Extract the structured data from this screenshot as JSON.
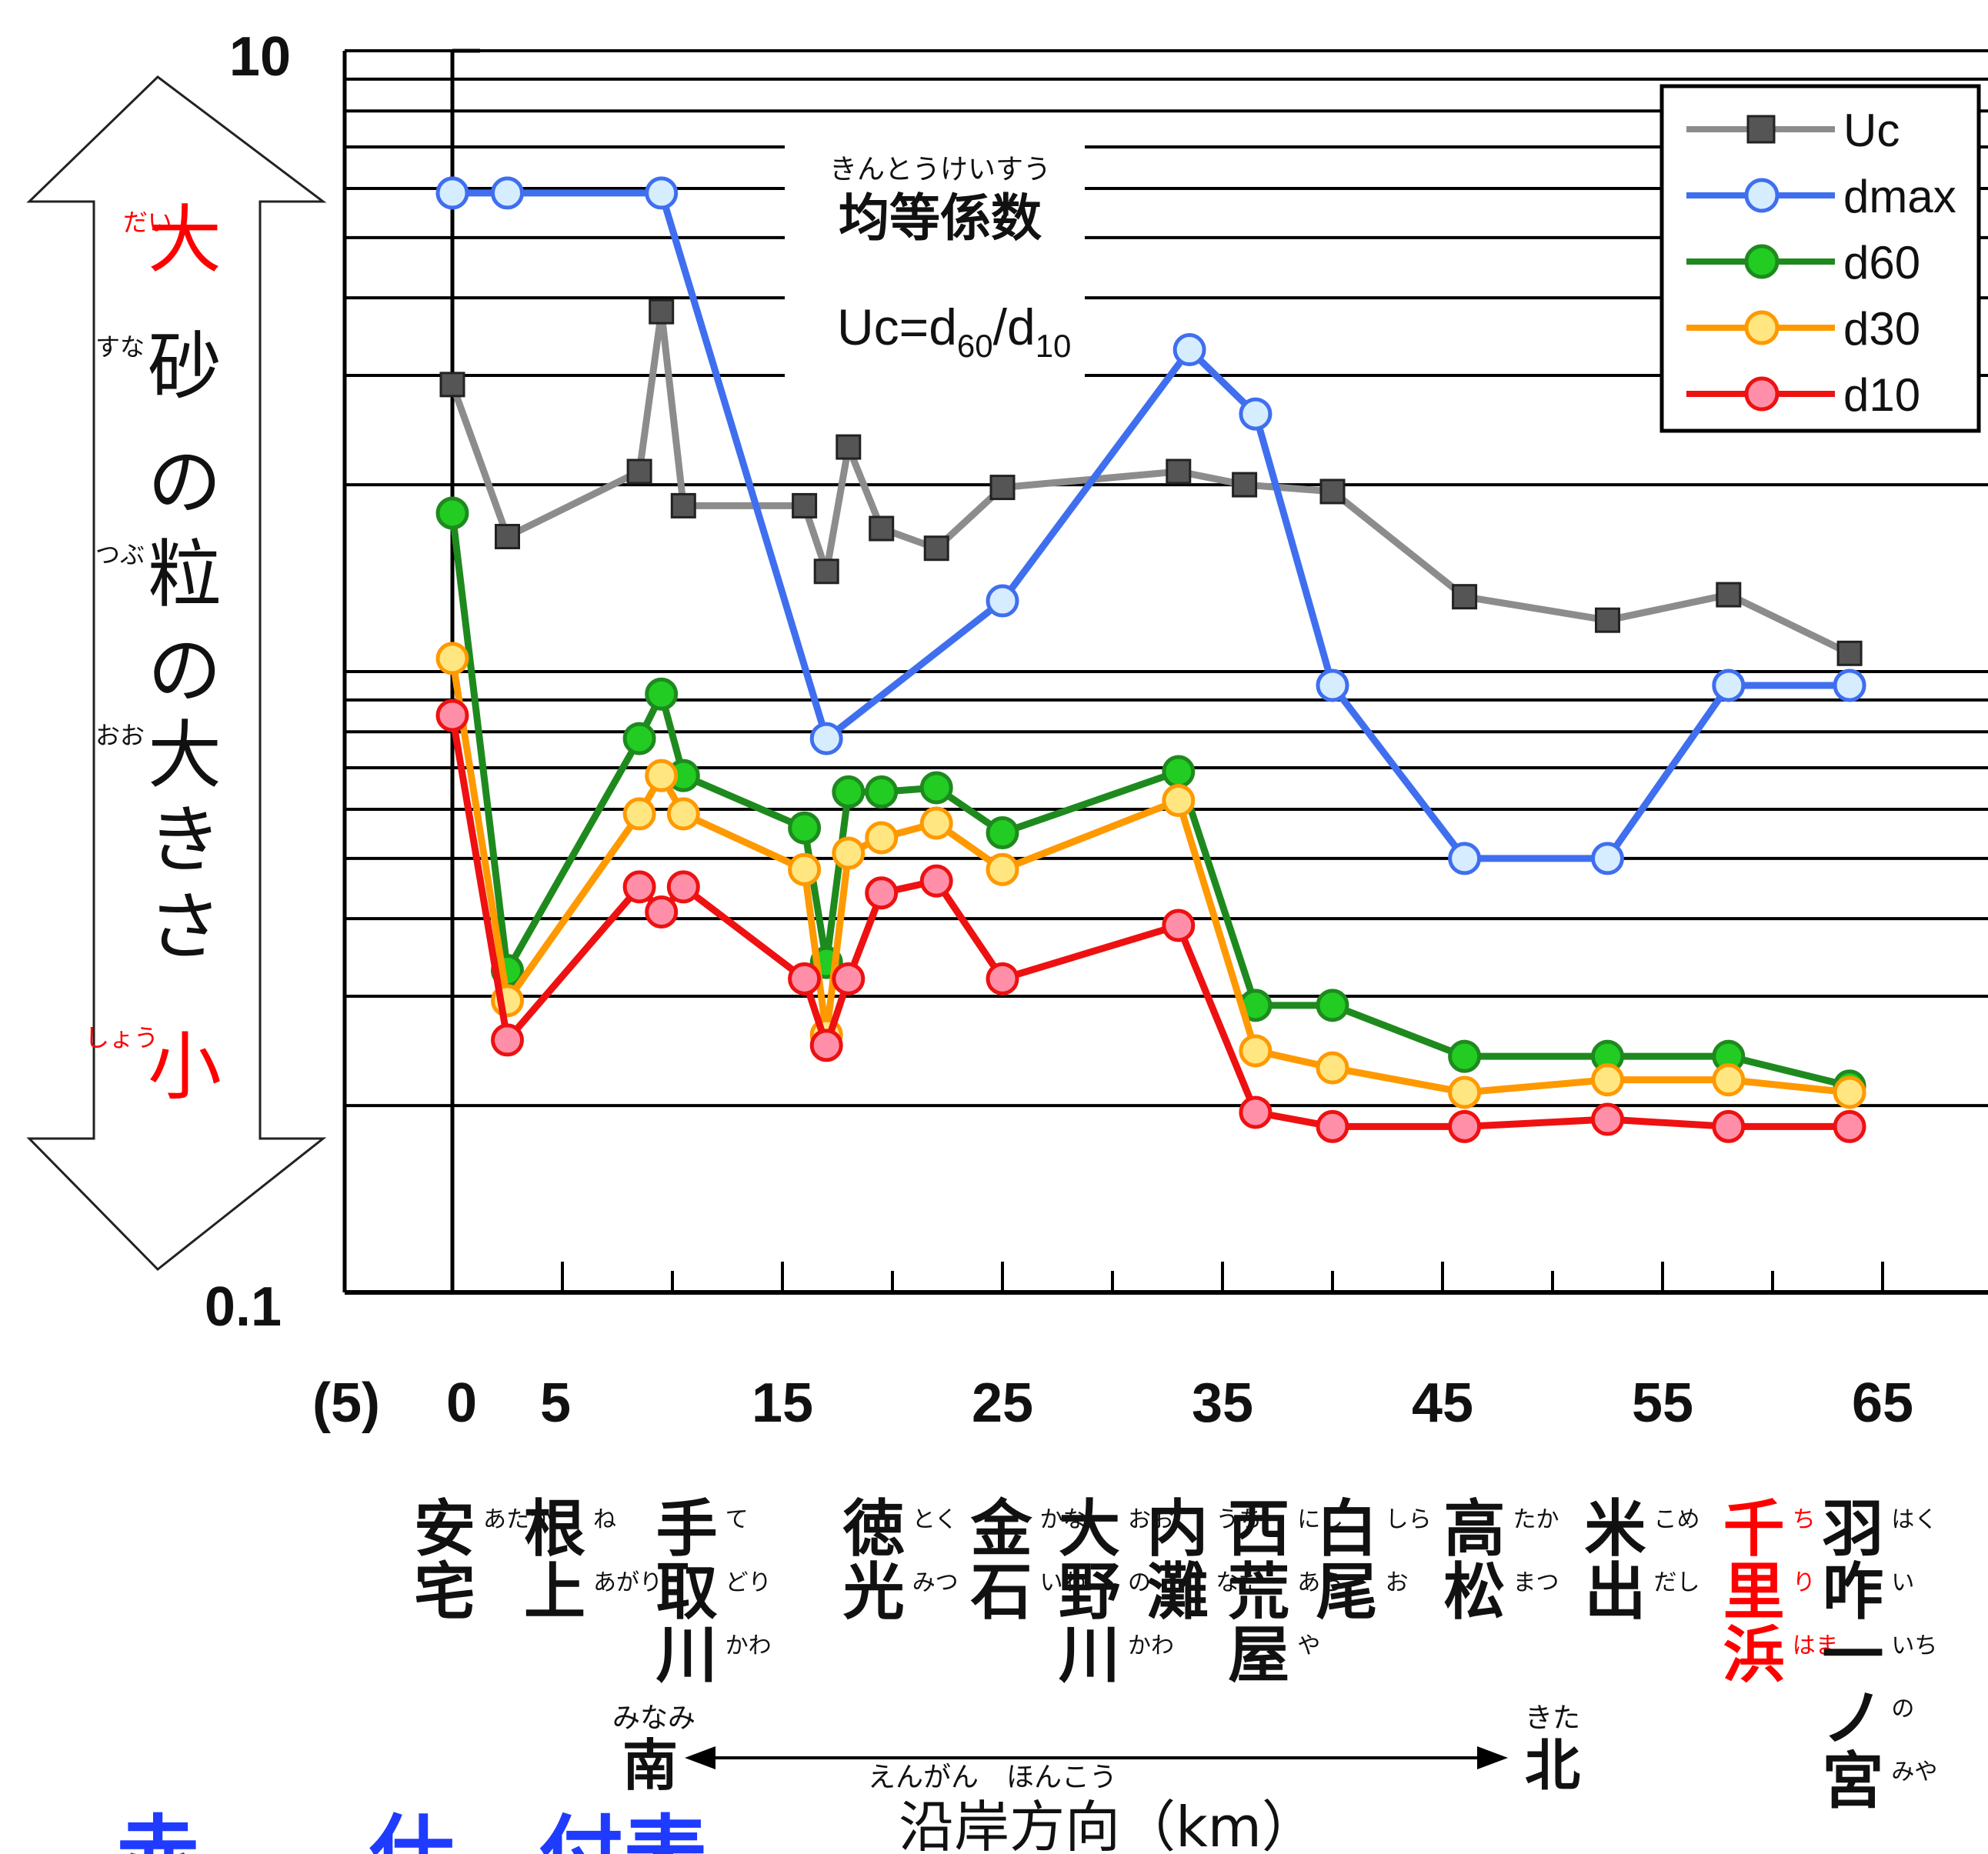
{
  "chart_data": {
    "type": "line",
    "y_scale": "log",
    "ylim": [
      0.1,
      10
    ],
    "ytick_labels": [
      "10",
      "0.1"
    ],
    "x_ticks": [
      -5,
      0,
      5,
      15,
      25,
      35,
      45,
      55,
      65
    ],
    "x_tick_labels": [
      "(5)",
      "0",
      "5",
      "15",
      "25",
      "35",
      "45",
      "55",
      "65"
    ],
    "grid": "horizontal log gridlines",
    "legend_position": "top-right",
    "series": [
      {
        "name": "Uc",
        "color": "#8c8c8c",
        "marker": "square",
        "x": [
          0,
          2.5,
          8.5,
          9.5,
          10.5,
          16,
          17,
          18,
          19.5,
          22,
          25,
          33,
          36,
          40,
          46,
          52.5,
          58,
          63.5
        ],
        "y": [
          2.9,
          1.65,
          2.1,
          3.8,
          1.85,
          1.85,
          1.45,
          2.3,
          1.7,
          1.58,
          1.98,
          2.1,
          2.0,
          1.95,
          1.32,
          1.21,
          1.33,
          1.07
        ]
      },
      {
        "name": "dmax",
        "color": "#3f6fef",
        "marker": "circle",
        "x": [
          0,
          2.5,
          9.5,
          17,
          25,
          33.5,
          36.5,
          40,
          46,
          52.5,
          58,
          63.5
        ],
        "y": [
          5.9,
          5.9,
          5.9,
          0.78,
          1.3,
          3.3,
          2.6,
          0.95,
          0.5,
          0.5,
          0.95,
          0.95
        ]
      },
      {
        "name": "d60",
        "color": "#1e8a1e",
        "marker": "circle",
        "x": [
          0,
          2.5,
          8.5,
          9.5,
          10.5,
          16,
          17,
          18,
          19.5,
          22,
          25,
          33,
          36.5,
          40,
          46,
          52.5,
          58,
          63.5
        ],
        "y": [
          1.8,
          0.33,
          0.78,
          0.92,
          0.68,
          0.56,
          0.34,
          0.64,
          0.64,
          0.65,
          0.55,
          0.69,
          0.29,
          0.29,
          0.24,
          0.24,
          0.24,
          0.215
        ]
      },
      {
        "name": "d30",
        "color": "#ff9900",
        "marker": "circle",
        "x": [
          0,
          2.5,
          8.5,
          9.5,
          10.5,
          16,
          17,
          18,
          19.5,
          22,
          25,
          33,
          36.5,
          40,
          46,
          52.5,
          58,
          63.5
        ],
        "y": [
          1.05,
          0.295,
          0.59,
          0.68,
          0.59,
          0.48,
          0.26,
          0.51,
          0.54,
          0.57,
          0.48,
          0.62,
          0.245,
          0.23,
          0.21,
          0.22,
          0.22,
          0.21
        ]
      },
      {
        "name": "d10",
        "color": "#ee1111",
        "marker": "circle",
        "x": [
          0,
          2.5,
          8.5,
          9.5,
          10.5,
          16,
          17,
          18,
          19.5,
          22,
          25,
          33,
          36.5,
          40,
          46,
          52.5,
          58,
          63.5
        ],
        "y": [
          0.85,
          0.255,
          0.45,
          0.41,
          0.45,
          0.32,
          0.25,
          0.32,
          0.44,
          0.46,
          0.32,
          0.39,
          0.195,
          0.185,
          0.185,
          0.19,
          0.185,
          0.185
        ]
      }
    ],
    "annotation": {
      "title_furigana": "きんとうけいすう",
      "title": "均等係数",
      "formula_left": "Uc=d",
      "sub1": "60",
      "slash": "/d",
      "sub2": "10"
    }
  },
  "y_axis_arrow": {
    "top_label": "大",
    "top_furigana": "だい",
    "bottom_label": "小",
    "bottom_furigana": "しょう",
    "text_chars": [
      "砂",
      "の",
      "粒",
      "の",
      "大",
      "き",
      "さ"
    ],
    "text_furigana": [
      "すな",
      "",
      "つぶ",
      "",
      "おお",
      "",
      ""
    ],
    "accent_color": "#ff0000"
  },
  "locations": [
    {
      "x": 0,
      "chars": [
        "安",
        "宅"
      ],
      "furigana": [
        "あたか"
      ],
      "highlight": false
    },
    {
      "x": 5,
      "chars": [
        "根",
        "上"
      ],
      "furigana": [
        "ね",
        "あがり"
      ],
      "highlight": false
    },
    {
      "x": 11,
      "chars": [
        "手",
        "取",
        "川"
      ],
      "furigana": [
        "て",
        "どり",
        "かわ"
      ],
      "highlight": false
    },
    {
      "x": 19.5,
      "chars": [
        "徳",
        "光"
      ],
      "furigana": [
        "とく",
        "みつ"
      ],
      "highlight": false
    },
    {
      "x": 25.3,
      "chars": [
        "金",
        "石"
      ],
      "furigana": [
        "かな",
        "いわ"
      ],
      "highlight": false
    },
    {
      "x": 29.3,
      "chars": [
        "大",
        "野",
        "川"
      ],
      "furigana": [
        "おお",
        "の",
        "かわ"
      ],
      "highlight": false
    },
    {
      "x": 33.3,
      "chars": [
        "内",
        "灘"
      ],
      "furigana": [
        "うち",
        "なだ"
      ],
      "highlight": false
    },
    {
      "x": 37,
      "chars": [
        "西",
        "荒",
        "屋"
      ],
      "furigana": [
        "にし",
        "あら",
        "や"
      ],
      "highlight": false
    },
    {
      "x": 41,
      "chars": [
        "白",
        "尾"
      ],
      "furigana": [
        "しら",
        "お"
      ],
      "highlight": false
    },
    {
      "x": 46.8,
      "chars": [
        "高",
        "松"
      ],
      "furigana": [
        "たか",
        "まつ"
      ],
      "highlight": false
    },
    {
      "x": 53.2,
      "chars": [
        "米",
        "出"
      ],
      "furigana": [
        "こめ",
        "だし"
      ],
      "highlight": false
    },
    {
      "x": 59.5,
      "chars": [
        "千",
        "里",
        "浜"
      ],
      "furigana": [
        "ち",
        "り",
        "はま"
      ],
      "highlight": true
    },
    {
      "x": 64,
      "chars": [
        "羽",
        "咋",
        "一",
        "ノ",
        "宮"
      ],
      "furigana": [
        "はく",
        "い",
        "いち",
        "の",
        "みや"
      ],
      "highlight": false
    }
  ],
  "direction": {
    "south": "南",
    "south_furigana": "みなみ",
    "north": "北",
    "north_furigana": "きた",
    "axis_title": "沿岸方向（km）",
    "axis_title_furigana": "えんがん　ほんこう"
  },
  "bottom_partial_text": "赤　　仕　付表"
}
